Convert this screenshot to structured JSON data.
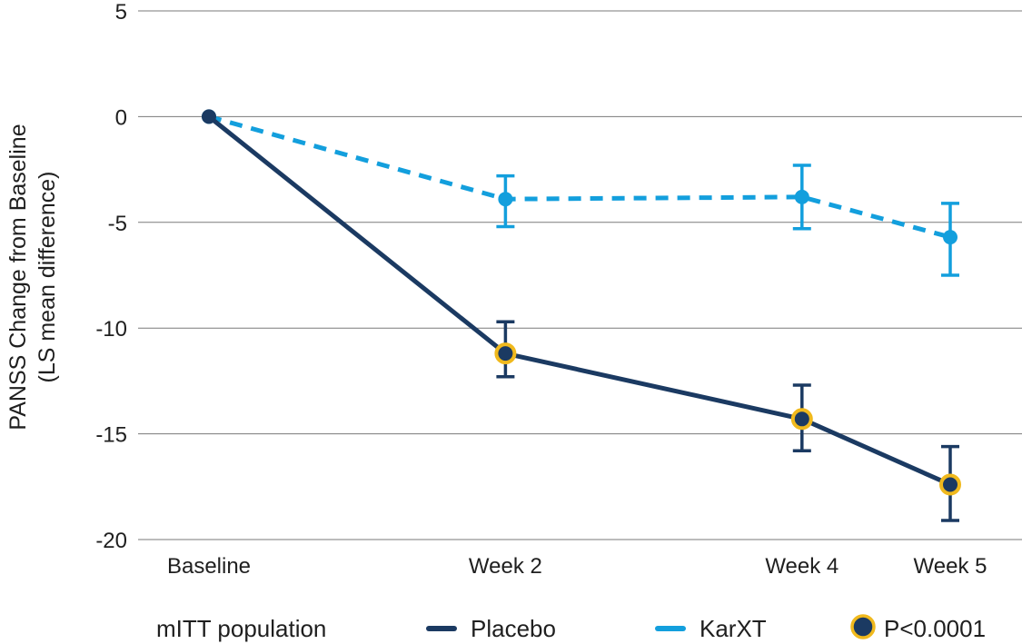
{
  "chart_data": {
    "type": "line",
    "title": "",
    "ylabel": "PANSS Change from Baseline",
    "ylabel_line2": "(LS mean difference)",
    "xlabel": "",
    "ylim": [
      -20,
      5
    ],
    "yticks": [
      5,
      0,
      -5,
      -10,
      -15,
      -20
    ],
    "ytick_labels": [
      "5",
      "0",
      "-5",
      "-10",
      "-15",
      "-20"
    ],
    "x_weeks": [
      0,
      2,
      4,
      5
    ],
    "categories": [
      "Baseline",
      "Week 2",
      "Week 4",
      "Week 5"
    ],
    "grid": "horizontal",
    "series": [
      {
        "name": "Placebo",
        "color": "#1b3a62",
        "style": "solid",
        "values": [
          0,
          -11.2,
          -14.3,
          -17.4
        ],
        "err_low": [
          null,
          -12.3,
          -15.8,
          -19.1
        ],
        "err_high": [
          null,
          -9.7,
          -12.7,
          -15.6
        ],
        "significant": [
          false,
          true,
          true,
          true
        ]
      },
      {
        "name": "KarXT",
        "color": "#139fdd",
        "style": "dashed",
        "values": [
          0,
          -3.9,
          -3.8,
          -5.7
        ],
        "err_low": [
          null,
          -5.2,
          -5.3,
          -7.5
        ],
        "err_high": [
          null,
          -2.8,
          -2.3,
          -4.1
        ],
        "significant": [
          false,
          false,
          false,
          false
        ]
      }
    ],
    "significance_color": "#f0b91d",
    "legend": {
      "placement": "bottom",
      "population_label": "mITT population",
      "significance_label": "P<0.0001"
    }
  }
}
